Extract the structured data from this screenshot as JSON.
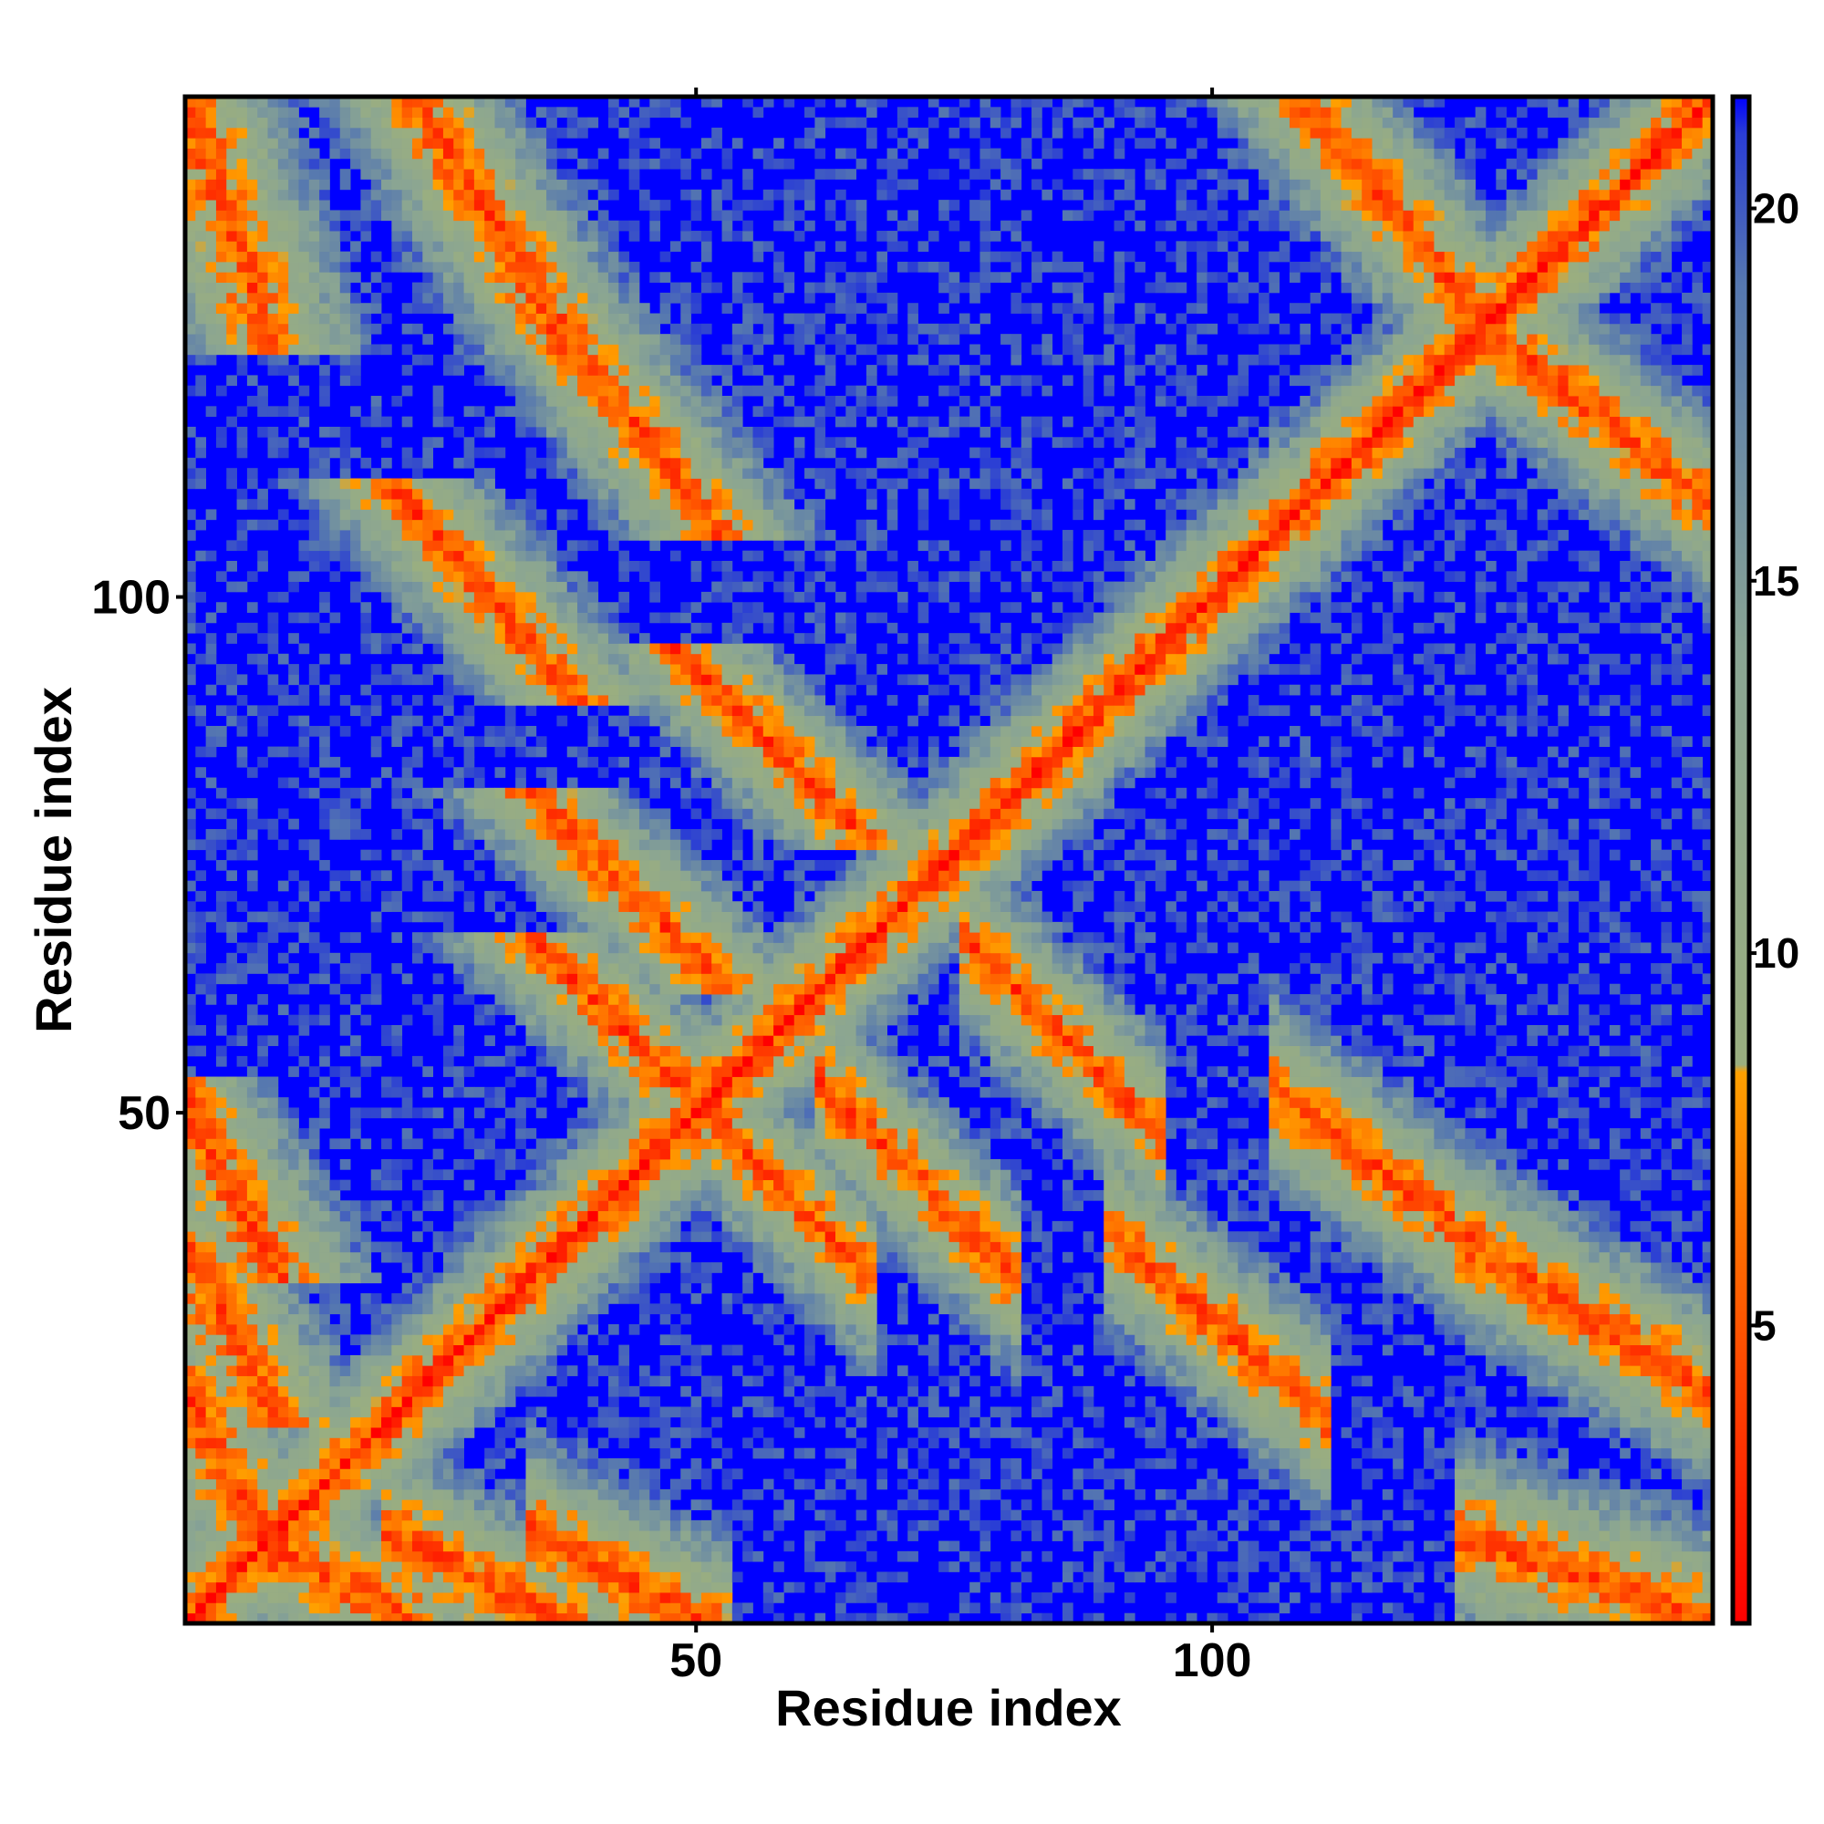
{
  "chart_data": {
    "type": "heatmap",
    "title": "",
    "xlabel": "Residue index",
    "ylabel": "Residue index",
    "n_residues": 148,
    "xlim": [
      1,
      148
    ],
    "ylim": [
      1,
      148
    ],
    "x_ticks": [
      {
        "value": 50,
        "label": "50"
      },
      {
        "value": 100,
        "label": "100"
      }
    ],
    "y_ticks": [
      {
        "value": 50,
        "label": "50"
      },
      {
        "value": 100,
        "label": "100"
      }
    ],
    "colorbar": {
      "range": [
        1,
        21.5
      ],
      "ticks": [
        {
          "value": 5,
          "label": "5"
        },
        {
          "value": 10,
          "label": "10"
        },
        {
          "value": 15,
          "label": "15"
        },
        {
          "value": 20,
          "label": "20"
        }
      ],
      "stops": [
        {
          "value": 1,
          "color": "#ff0000"
        },
        {
          "value": 5,
          "color": "#ff5500"
        },
        {
          "value": 8.4,
          "color": "#ffa000"
        },
        {
          "value": 8.5,
          "color": "#9aae80"
        },
        {
          "value": 14,
          "color": "#8aa593"
        },
        {
          "value": 19,
          "color": "#5577b0"
        },
        {
          "value": 21,
          "color": "#2a3dd5"
        },
        {
          "value": 21.5,
          "color": "#0000ff"
        }
      ]
    },
    "colors": {
      "far": "#0000ff",
      "mid": "#9aae80",
      "close": "#ffa000",
      "contact": "#ff0000"
    },
    "segments": [
      {
        "start": 1,
        "end": 8
      },
      {
        "start": 9,
        "end": 22
      },
      {
        "start": 23,
        "end": 36
      },
      {
        "start": 37,
        "end": 50
      },
      {
        "start": 51,
        "end": 64
      },
      {
        "start": 65,
        "end": 78
      },
      {
        "start": 79,
        "end": 92
      },
      {
        "start": 93,
        "end": 108
      },
      {
        "start": 109,
        "end": 126
      },
      {
        "start": 127,
        "end": 148
      }
    ],
    "strand_pairings": [
      {
        "a": [
          1,
          8
        ],
        "b": [
          1,
          8
        ],
        "orientation": "parallel"
      },
      {
        "a": [
          9,
          22
        ],
        "b": [
          1,
          8
        ],
        "orientation": "antiparallel"
      },
      {
        "a": [
          23,
          36
        ],
        "b": [
          1,
          8
        ],
        "orientation": "antiparallel"
      },
      {
        "a": [
          37,
          50
        ],
        "b": [
          1,
          8
        ],
        "orientation": "antiparallel"
      },
      {
        "a": [
          51,
          64
        ],
        "b": [
          37,
          50
        ],
        "orientation": "antiparallel"
      },
      {
        "a": [
          65,
          78
        ],
        "b": [
          37,
          50
        ],
        "orientation": "antiparallel"
      },
      {
        "a": [
          79,
          92
        ],
        "b": [
          51,
          64
        ],
        "orientation": "antiparallel"
      },
      {
        "a": [
          93,
          108
        ],
        "b": [
          23,
          36
        ],
        "orientation": "antiparallel"
      },
      {
        "a": [
          109,
          126
        ],
        "b": [
          37,
          50
        ],
        "orientation": "antiparallel"
      },
      {
        "a": [
          127,
          148
        ],
        "b": [
          109,
          126
        ],
        "orientation": "antiparallel"
      },
      {
        "a": [
          127,
          148
        ],
        "b": [
          1,
          8
        ],
        "orientation": "antiparallel"
      },
      {
        "a": [
          127,
          148
        ],
        "b": [
          23,
          36
        ],
        "orientation": "antiparallel"
      }
    ],
    "grid": false,
    "legend": "colorbar-right"
  }
}
